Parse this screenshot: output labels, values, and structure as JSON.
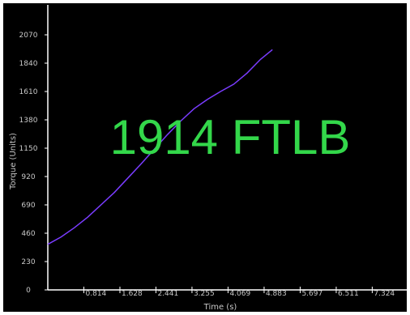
{
  "readout": "1914 FTLB",
  "colors": {
    "background": "#000000",
    "axis": "#ffffff",
    "series": "#7a3cff",
    "readout": "#33d74a",
    "tick_text": "#c8c8c8"
  },
  "chart_data": {
    "type": "line",
    "xlabel": "Time (s)",
    "ylabel": "Torque (Units)",
    "xlim": [
      0,
      8.14
    ],
    "ylim": [
      0,
      2300
    ],
    "x_ticks": [
      0.814,
      1.628,
      2.441,
      3.255,
      4.069,
      4.883,
      5.697,
      6.511,
      7.324
    ],
    "x_tick_labels": [
      "0.814",
      "1.628",
      "2.441",
      "3.255",
      "4.069",
      "4.883",
      "5.697",
      "6.511",
      "7.324"
    ],
    "y_ticks": [
      0,
      230,
      460,
      690,
      920,
      1150,
      1380,
      1610,
      1840,
      2070
    ],
    "y_tick_labels": [
      "0",
      "230",
      "460",
      "690",
      "920",
      "1150",
      "1380",
      "1610",
      "1840",
      "2070"
    ],
    "grid": false,
    "series": [
      {
        "x": [
          0.0,
          0.3,
          0.6,
          0.9,
          1.2,
          1.5,
          1.8,
          2.1,
          2.4,
          2.7,
          3.0,
          3.3,
          3.6,
          3.9,
          4.2,
          4.5,
          4.8,
          5.07
        ],
        "y": [
          370,
          430,
          505,
          590,
          690,
          790,
          905,
          1020,
          1140,
          1260,
          1370,
          1470,
          1545,
          1610,
          1670,
          1760,
          1870,
          1950
        ]
      }
    ]
  }
}
